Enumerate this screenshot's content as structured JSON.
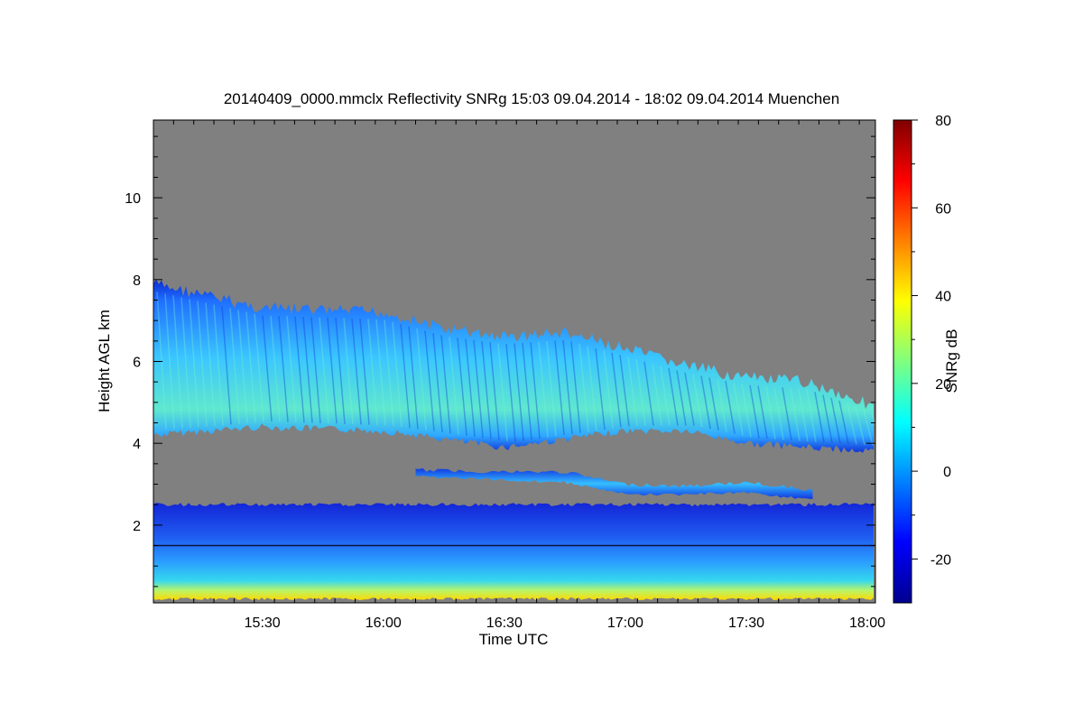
{
  "chart_data": {
    "type": "heatmap",
    "title": "20140409_0000.mmclx Reflectivity SNRg   15:03 09.04.2014 - 18:02 09.04.2014 Muenchen",
    "xlabel": "Time UTC",
    "ylabel": "Height AGL km",
    "x_ticks": [
      "15:30",
      "16:00",
      "16:30",
      "17:00",
      "17:30",
      "18:00"
    ],
    "x_range": [
      "15:03",
      "18:02"
    ],
    "y_ticks": [
      2,
      4,
      6,
      8,
      10
    ],
    "y_range": [
      0.1,
      11.9
    ],
    "background_color": "#808080",
    "colorbar": {
      "label": "SNRg dB",
      "range": [
        -30,
        80
      ],
      "ticks": [
        -20,
        0,
        20,
        40,
        60,
        80
      ],
      "colormap": "jet"
    },
    "features": [
      {
        "name": "upper cloud layer",
        "time_points": [
          "15:03",
          "15:30",
          "16:00",
          "16:15",
          "16:30",
          "16:45",
          "17:00",
          "17:15",
          "17:30",
          "17:45",
          "18:02"
        ],
        "top_km": [
          7.9,
          7.3,
          7.2,
          6.8,
          6.6,
          6.7,
          6.3,
          5.9,
          5.6,
          5.5,
          4.9
        ],
        "base_km": [
          4.2,
          4.4,
          4.3,
          4.1,
          3.9,
          4.1,
          4.3,
          4.3,
          4.0,
          3.9,
          3.8
        ],
        "peak_snr_db": 20
      },
      {
        "name": "thin layer ~3 km",
        "time_points": [
          "16:08",
          "16:30",
          "16:45",
          "17:00",
          "17:15",
          "17:30",
          "17:47"
        ],
        "top_km": [
          3.35,
          3.3,
          3.3,
          3.0,
          2.95,
          3.05,
          2.85
        ],
        "base_km": [
          3.2,
          3.1,
          3.05,
          2.75,
          2.75,
          2.8,
          2.6
        ],
        "peak_snr_db": 8
      },
      {
        "name": "boundary layer returns",
        "time_points": [
          "15:03",
          "18:02"
        ],
        "top_km": [
          2.5,
          2.5
        ],
        "base_km": [
          0.2,
          0.2
        ],
        "peak_snr_db": 40
      }
    ],
    "reference_line_km": 1.5,
    "grid": false,
    "legend": "colorbar-right"
  }
}
